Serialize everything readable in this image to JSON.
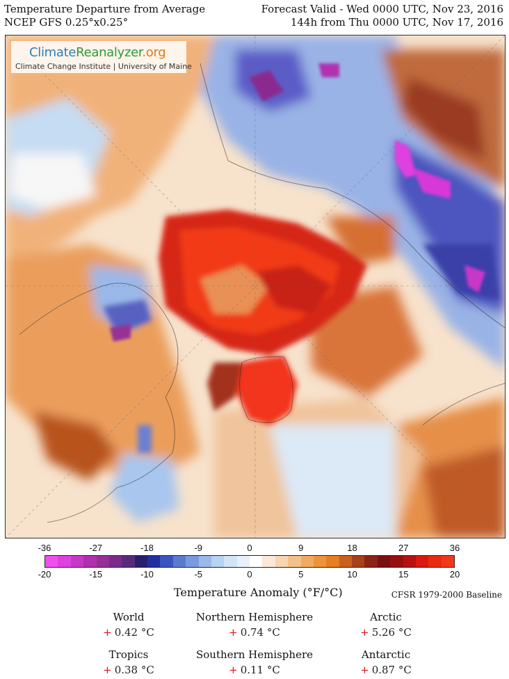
{
  "header": {
    "title": "Temperature Departure from Average",
    "model": "NCEP GFS 0.25°x0.25°",
    "valid": "Forecast Valid - Wed 0000 UTC, Nov 23, 2016",
    "lead": "144h from Thu 0000 UTC, Nov 17, 2016"
  },
  "logo": {
    "part1": "Climate",
    "part2": "Reanalyzer",
    "part3": ".org",
    "subtitle": "Climate Change Institute | University of Maine"
  },
  "scale": {
    "fahrenheit_ticks": [
      "-36",
      "-27",
      "-18",
      "-9",
      "0",
      "9",
      "18",
      "27",
      "36"
    ],
    "celsius_ticks": [
      "-20",
      "-15",
      "-10",
      "-5",
      "0",
      "5",
      "10",
      "15",
      "20"
    ],
    "colors": [
      "#f04ff0",
      "#e040e0",
      "#c838c8",
      "#b030b0",
      "#963096",
      "#7a2a8a",
      "#5a2a7a",
      "#2a1e6e",
      "#2030a0",
      "#3a55c0",
      "#5a7ad0",
      "#7a9ae0",
      "#9ab8ea",
      "#b8d2f2",
      "#d2e4f8",
      "#e8f0fb",
      "#ffffff",
      "#fbe8d6",
      "#f8d4b0",
      "#f5c08a",
      "#f2aa62",
      "#ee943e",
      "#e87e22",
      "#c8601e",
      "#a8401a",
      "#8a2414",
      "#7a1010",
      "#961010",
      "#b81010",
      "#d81a10",
      "#ea2a10",
      "#f2381a"
    ],
    "title": "Temperature Anomaly (°F/°C)",
    "baseline": "CFSR 1979-2000 Baseline"
  },
  "stats": [
    {
      "label": "World",
      "sign": "+",
      "value": "0.42 °C"
    },
    {
      "label": "Northern Hemisphere",
      "sign": "+",
      "value": "0.74 °C"
    },
    {
      "label": "Arctic",
      "sign": "+",
      "value": "5.26 °C"
    },
    {
      "label": "Tropics",
      "sign": "+",
      "value": "0.38 °C"
    },
    {
      "label": "Southern Hemisphere",
      "sign": "+",
      "value": "0.11 °C"
    },
    {
      "label": "Antarctic",
      "sign": "+",
      "value": "0.87 °C"
    }
  ]
}
